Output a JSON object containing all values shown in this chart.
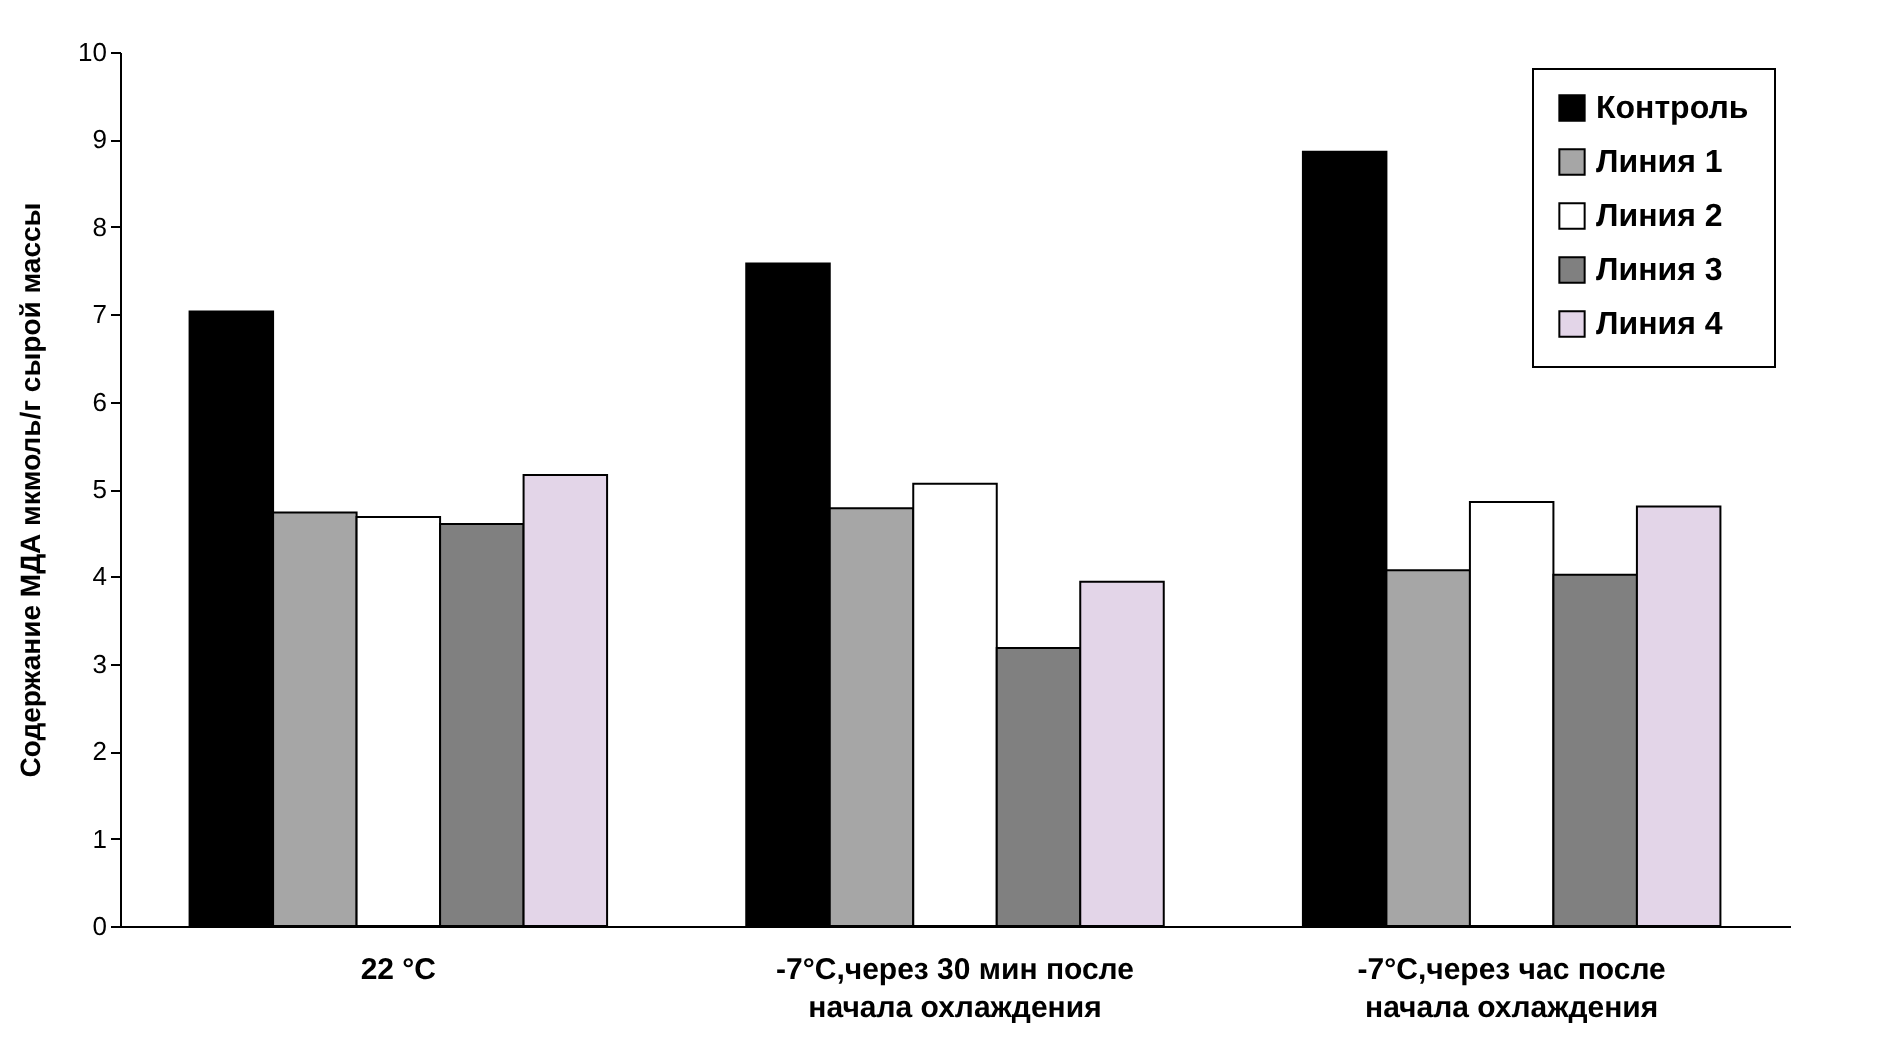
{
  "chart_data": {
    "type": "bar",
    "ylabel": "Содержание МДА мкмоль/г сырой массы",
    "categories": [
      "22 °C",
      "-7°C,через 30 мин после начала охлаждения",
      "-7°C,через час после начала охлаждения"
    ],
    "series": [
      {
        "name": "Контроль",
        "color": "#000000",
        "values": [
          7.03,
          7.58,
          8.86
        ]
      },
      {
        "name": "Линия 1",
        "color": "#a6a6a6",
        "values": [
          4.73,
          4.78,
          4.07
        ]
      },
      {
        "name": "Линия 2",
        "color": "#ffffff",
        "values": [
          4.68,
          5.06,
          4.85
        ]
      },
      {
        "name": "Линия 3",
        "color": "#808080",
        "values": [
          4.6,
          3.18,
          4.02
        ]
      },
      {
        "name": "Линия 4",
        "color": "#e3d5e8",
        "values": [
          5.16,
          3.94,
          4.8
        ]
      }
    ],
    "ylim": [
      0,
      10
    ],
    "yticks": [
      0,
      1,
      2,
      3,
      4,
      5,
      6,
      7,
      8,
      9,
      10
    ],
    "grid": false,
    "legend": "top right"
  }
}
